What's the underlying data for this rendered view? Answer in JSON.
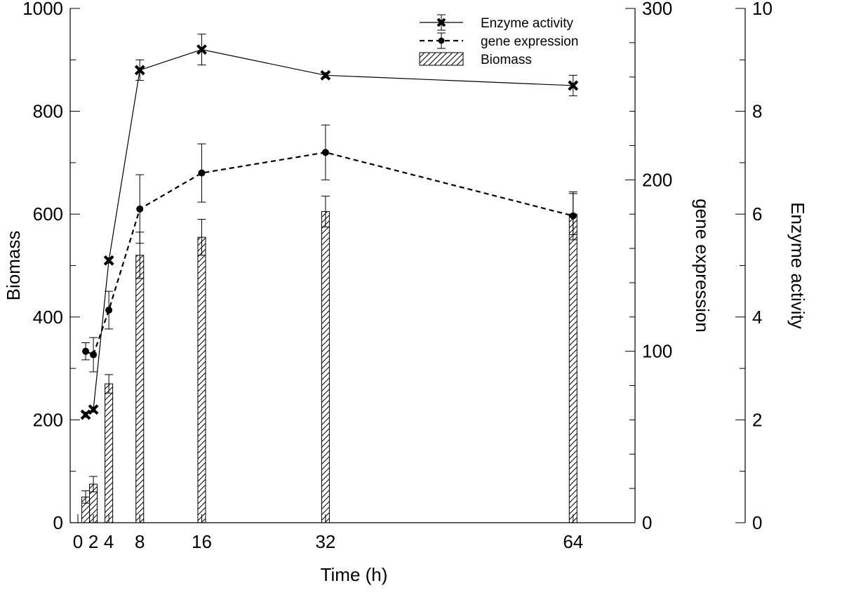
{
  "chart_data": {
    "type": "bar+line",
    "title": "",
    "xlabel": "Time (h)",
    "x_ticks": [
      0,
      2,
      4,
      8,
      16,
      32,
      64
    ],
    "x_range": [
      -1,
      72
    ],
    "y_left": {
      "label": "Biomass",
      "range": [
        0,
        1000
      ],
      "ticks": [
        0,
        200,
        400,
        600,
        800,
        1000
      ],
      "minor_step": 100
    },
    "y_right_1": {
      "label": "gene expression",
      "range": [
        0,
        300
      ],
      "ticks": [
        0,
        100,
        200,
        300
      ],
      "minor_step": 20
    },
    "y_right_2": {
      "label": "Enzyme activity",
      "range": [
        0,
        10
      ],
      "ticks": [
        0,
        2,
        4,
        6,
        8,
        10
      ],
      "minor_step": 1
    },
    "legend_position": "top-right",
    "series": [
      {
        "name": "Enzyme activity",
        "kind": "line",
        "axis": "enzyme",
        "marker": "x",
        "line_style": "solid",
        "x": [
          1,
          2,
          4,
          8,
          16,
          32,
          64
        ],
        "values": [
          2.1,
          2.2,
          5.1,
          8.8,
          9.2,
          8.7,
          8.5
        ],
        "errors": [
          0.05,
          0.05,
          0.05,
          0.2,
          0.3,
          0.05,
          0.2
        ]
      },
      {
        "name": "gene expression",
        "kind": "line",
        "axis": "gene",
        "marker": "circle",
        "line_style": "dashed",
        "x": [
          1,
          2,
          4,
          8,
          16,
          32,
          64
        ],
        "values": [
          100,
          98,
          124,
          183,
          204,
          216,
          179
        ],
        "errors": [
          5,
          10,
          11,
          20,
          17,
          16,
          14
        ]
      },
      {
        "name": "Biomass",
        "kind": "bar",
        "axis": "biomass",
        "hatch": "diagonal",
        "x": [
          1,
          2,
          4,
          8,
          16,
          32,
          64
        ],
        "values": [
          50,
          75,
          270,
          520,
          555,
          605,
          600
        ],
        "errors": [
          12,
          15,
          18,
          45,
          35,
          30,
          40
        ]
      }
    ]
  }
}
